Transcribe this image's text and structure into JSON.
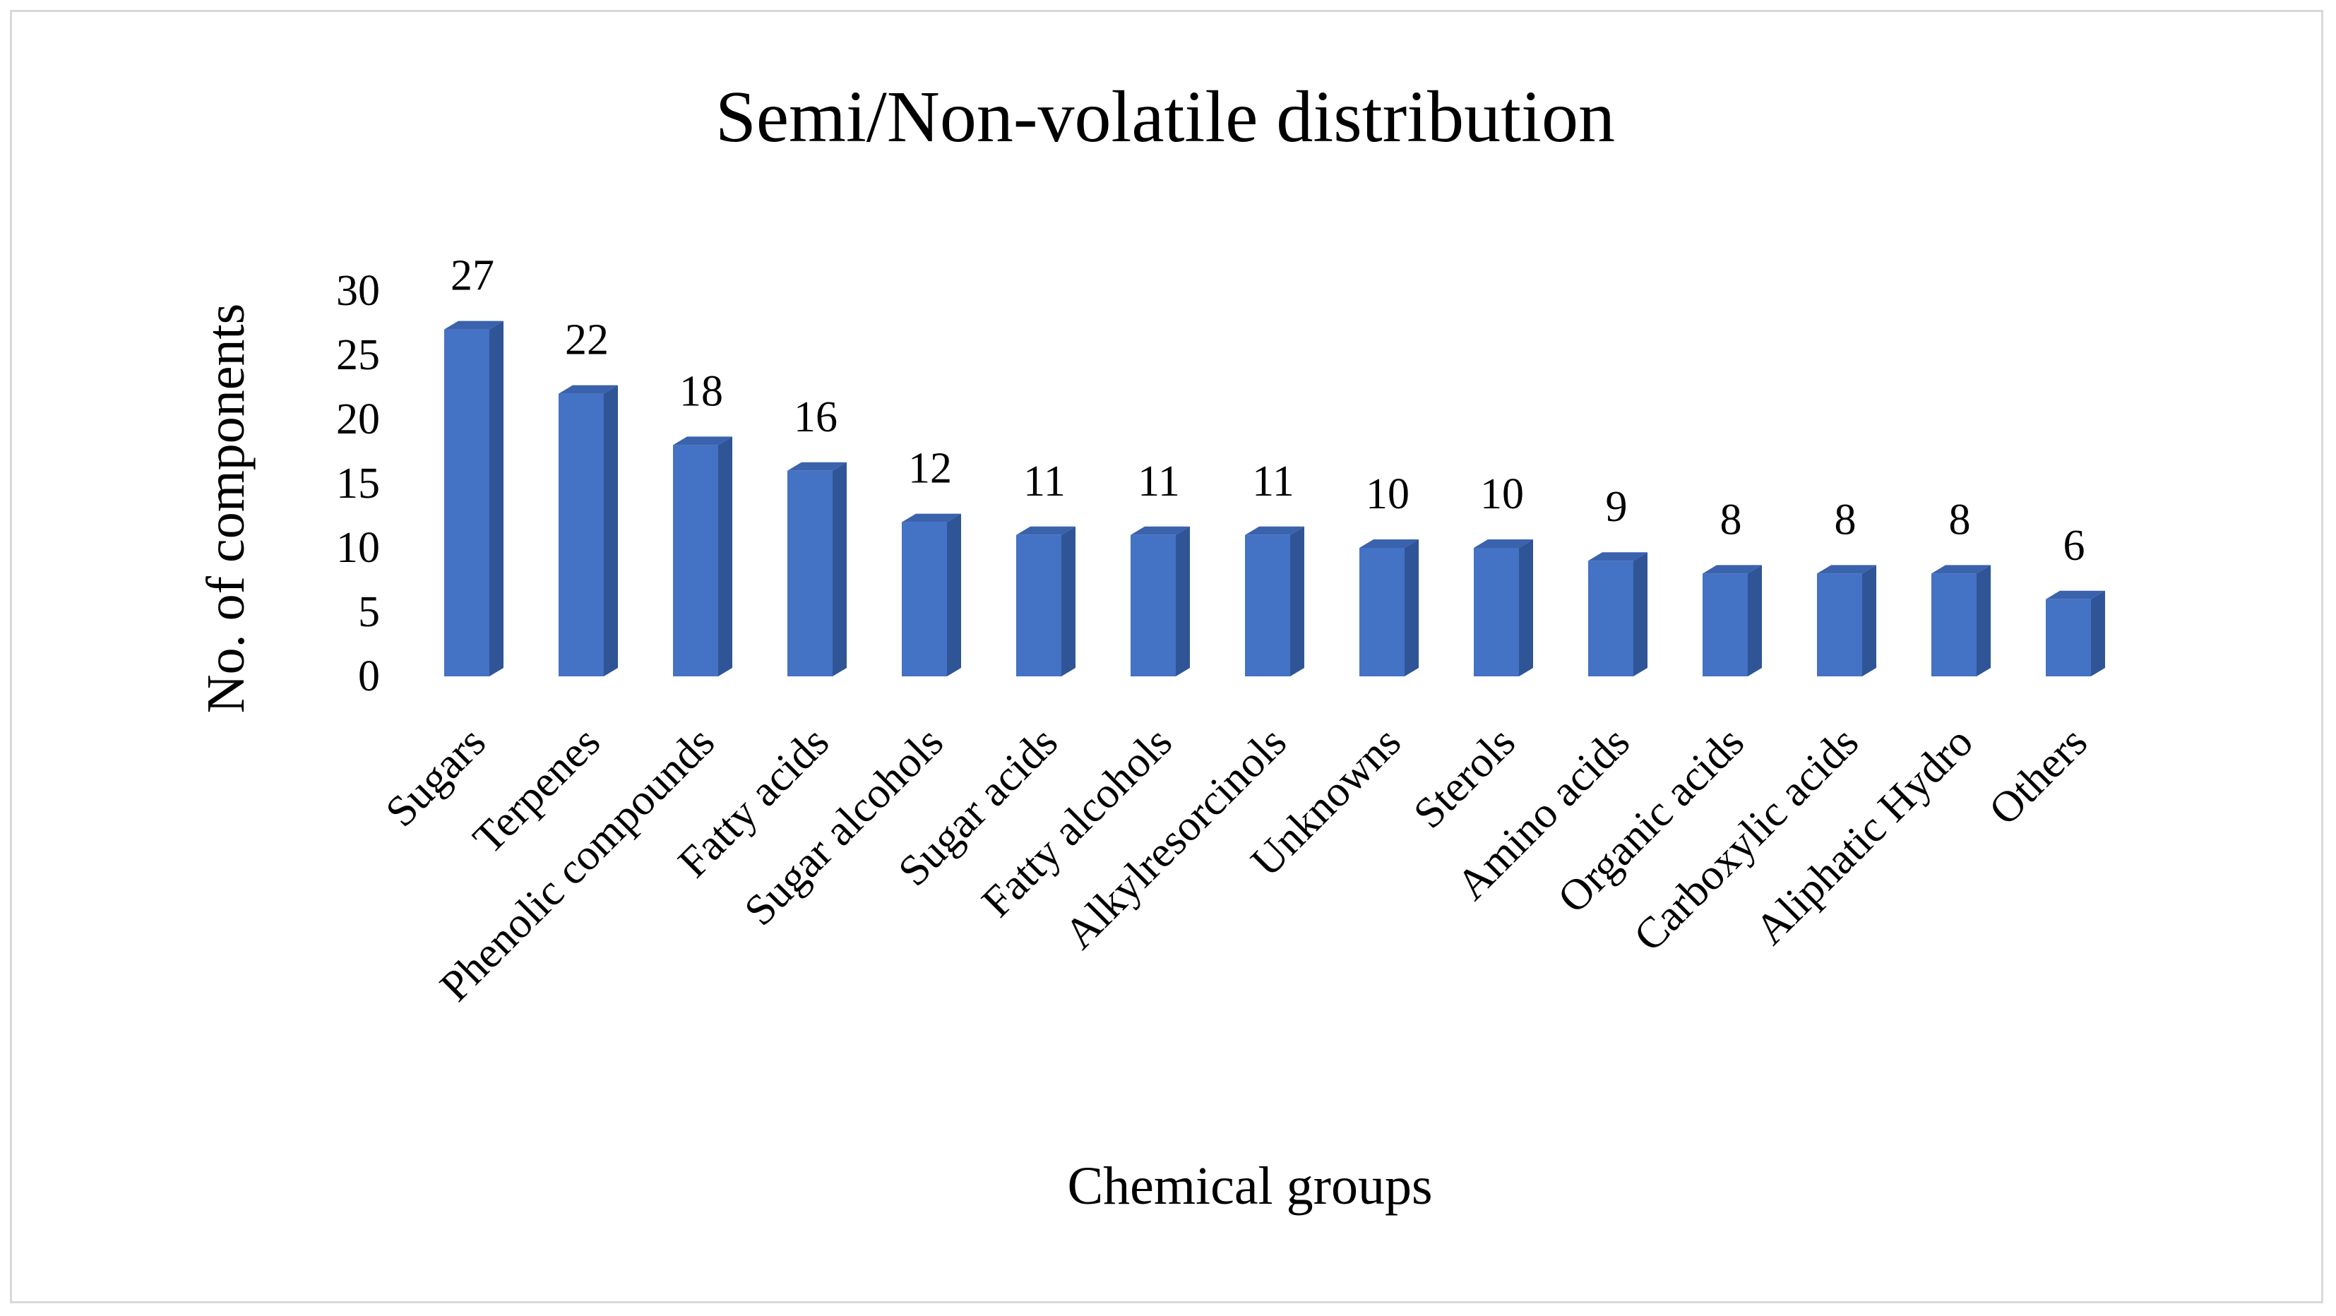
{
  "chart_data": {
    "type": "bar",
    "title": "Semi/Non-volatile distribution",
    "xlabel": "Chemical groups",
    "ylabel": "No. of components",
    "ylim": [
      0,
      30
    ],
    "yticks": [
      "0",
      "5",
      "10",
      "15",
      "20",
      "25",
      "30"
    ],
    "grid": false,
    "legend": "none",
    "style": "3d-column",
    "colors": {
      "front": "#4472c4",
      "side": "#2f5597",
      "top": "#3a62ad"
    },
    "categories": [
      "Sugars",
      "Terpenes",
      "Phenolic compounds",
      "Fatty acids",
      "Sugar alcohols",
      "Sugar acids",
      "Fatty alcohols",
      "Alkylresorcinols",
      "Unknowns",
      "Sterols",
      "Amino acids",
      "Organic acids",
      "Carboxylic acids",
      "Aliphatic Hydro",
      "Others"
    ],
    "values": [
      27,
      22,
      18,
      16,
      12,
      11,
      11,
      11,
      10,
      10,
      9,
      8,
      8,
      8,
      6
    ],
    "data_labels": [
      "27",
      "22",
      "18",
      "16",
      "12",
      "11",
      "11",
      "11",
      "10",
      "10",
      "9",
      "8",
      "8",
      "8",
      "6"
    ]
  }
}
